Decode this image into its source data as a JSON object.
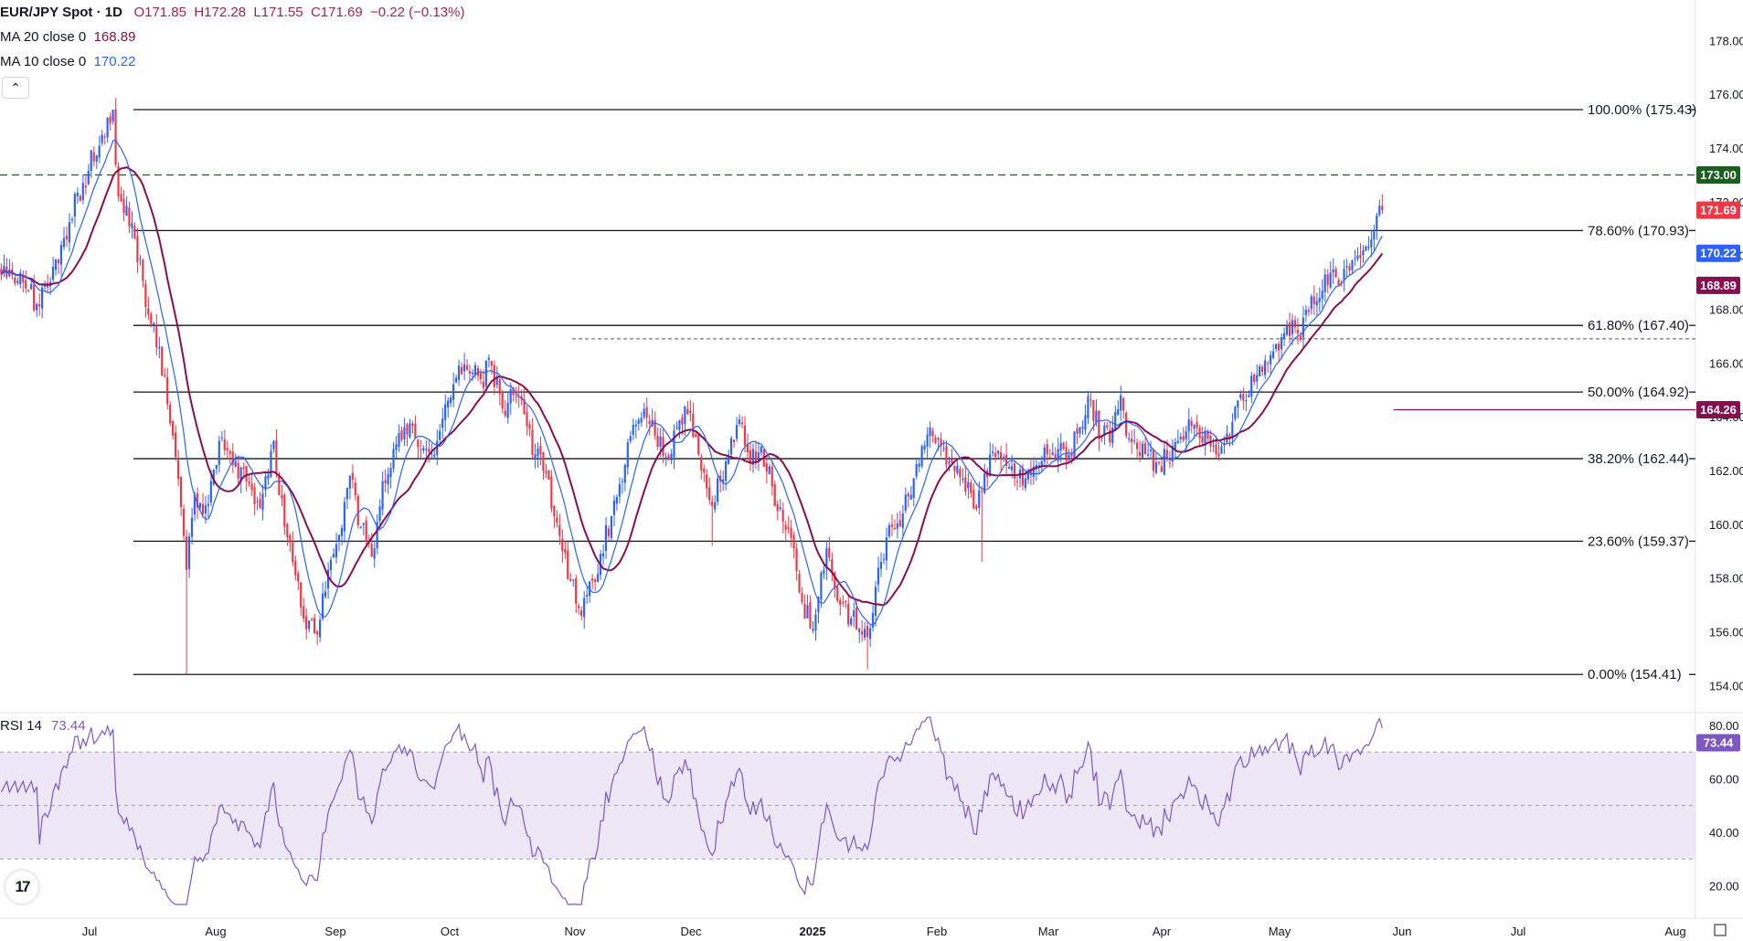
{
  "legend": {
    "symbol": "EUR/JPY Spot · 1D",
    "open": "O171.85",
    "high": "H172.28",
    "low": "L171.55",
    "close": "C171.69",
    "change": "−0.22 (−0.13%)",
    "ma20_label": "MA 20 close 0",
    "ma20_value": "168.89",
    "ma10_label": "MA 10 close 0",
    "ma10_value": "170.22",
    "rsi_label": "RSI 14",
    "rsi_value": "73.44"
  },
  "colors": {
    "up": "#2962ff",
    "down": "#f23645",
    "ma20": "#880e4f",
    "ma10": "#2962ff",
    "rsi": "#7e57c2",
    "rsi_band": "#ede7f6",
    "resistance": "#1b5e20",
    "last_price": "#f23645",
    "support_badge": "#880e4f"
  },
  "icons": {
    "collapse": "chevron-up-icon",
    "logo": "tradingview-logo-icon"
  },
  "chart_data": {
    "type": "candlestick",
    "title": "EUR/JPY Spot · 1D",
    "y_axis": {
      "ylim": [
        153.5,
        179
      ],
      "ticks": [
        154,
        156,
        158,
        160,
        162,
        164,
        166,
        168,
        170,
        172,
        174,
        176,
        178
      ],
      "side": "right"
    },
    "x_axis": {
      "labels": [
        "Jul",
        "Aug",
        "Sep",
        "Oct",
        "Nov",
        "Dec",
        "2025",
        "Feb",
        "Mar",
        "Apr",
        "May",
        "Jun",
        "Jul",
        "Aug"
      ]
    },
    "fibonacci": [
      {
        "label": "100.00% (175.43)",
        "value": 175.43
      },
      {
        "label": "78.60% (170.93)",
        "value": 170.93
      },
      {
        "label": "61.80% (167.40)",
        "value": 167.4
      },
      {
        "label": "50.00% (164.92)",
        "value": 164.92
      },
      {
        "label": "38.20% (162.44)",
        "value": 162.44
      },
      {
        "label": "23.60% (159.37)",
        "value": 159.37
      },
      {
        "label": "0.00% (154.41)",
        "value": 154.41
      }
    ],
    "horizontal_levels": [
      {
        "value": 173.0,
        "label": "173.00",
        "style": "dashed",
        "color": "#1b5e20"
      },
      {
        "value": 166.9,
        "style": "dotted",
        "color": "#555555"
      },
      {
        "value": 164.26,
        "label": "164.26",
        "style": "solid",
        "color": "#880e4f"
      }
    ],
    "price_badges": [
      {
        "value": 171.69,
        "label": "171.69",
        "color": "#f23645"
      },
      {
        "value": 170.22,
        "label": "170.22",
        "color": "#2962ff"
      },
      {
        "value": 168.89,
        "label": "168.89",
        "color": "#880e4f"
      }
    ],
    "anchors": [
      [
        0,
        169.3
      ],
      [
        8,
        169.0
      ],
      [
        14,
        168.1
      ],
      [
        22,
        170.4
      ],
      [
        30,
        172.7
      ],
      [
        37,
        174.5
      ],
      [
        40,
        174.9
      ],
      [
        41,
        175.43
      ],
      [
        43,
        172.2
      ],
      [
        48,
        171.2
      ],
      [
        54,
        167.8
      ],
      [
        60,
        165.5
      ],
      [
        64,
        162.5
      ],
      [
        68,
        158.3
      ],
      [
        71,
        161.1
      ],
      [
        75,
        160.7
      ],
      [
        80,
        163.1
      ],
      [
        85,
        162.2
      ],
      [
        90,
        161.6
      ],
      [
        95,
        160.6
      ],
      [
        100,
        163.1
      ],
      [
        104,
        159.9
      ],
      [
        108,
        158.1
      ],
      [
        112,
        156.1
      ],
      [
        116,
        155.9
      ],
      [
        120,
        158.3
      ],
      [
        124,
        159.6
      ],
      [
        128,
        161.8
      ],
      [
        132,
        159.9
      ],
      [
        136,
        158.8
      ],
      [
        140,
        161.6
      ],
      [
        144,
        162.8
      ],
      [
        148,
        163.6
      ],
      [
        152,
        163.2
      ],
      [
        156,
        162.8
      ],
      [
        160,
        163.1
      ],
      [
        164,
        164.6
      ],
      [
        168,
        165.9
      ],
      [
        172,
        165.6
      ],
      [
        176,
        165.4
      ],
      [
        180,
        165.9
      ],
      [
        184,
        164.3
      ],
      [
        188,
        164.8
      ],
      [
        192,
        164.1
      ],
      [
        196,
        162.6
      ],
      [
        200,
        161.9
      ],
      [
        203,
        160.3
      ],
      [
        206,
        159.0
      ],
      [
        209,
        157.9
      ],
      [
        213,
        156.6
      ],
      [
        217,
        157.9
      ],
      [
        220,
        158.9
      ],
      [
        224,
        160.3
      ],
      [
        228,
        161.6
      ],
      [
        232,
        163.7
      ],
      [
        236,
        164.3
      ],
      [
        240,
        163.3
      ],
      [
        244,
        162.5
      ],
      [
        248,
        163.6
      ],
      [
        252,
        164.1
      ],
      [
        256,
        162.6
      ],
      [
        260,
        160.9
      ],
      [
        264,
        161.6
      ],
      [
        268,
        163.2
      ],
      [
        271,
        163.9
      ],
      [
        275,
        162.3
      ],
      [
        279,
        162.9
      ],
      [
        283,
        161.4
      ],
      [
        287,
        160.1
      ],
      [
        291,
        159.1
      ],
      [
        294,
        157.1
      ],
      [
        298,
        156.1
      ],
      [
        300,
        157.3
      ],
      [
        303,
        159.1
      ],
      [
        306,
        157.6
      ],
      [
        309,
        157.1
      ],
      [
        312,
        156.5
      ],
      [
        315,
        156.1
      ],
      [
        318,
        155.8
      ],
      [
        320,
        156.7
      ],
      [
        323,
        158.6
      ],
      [
        327,
        159.9
      ],
      [
        331,
        160.4
      ],
      [
        335,
        161.7
      ],
      [
        338,
        162.9
      ],
      [
        341,
        163.6
      ],
      [
        345,
        162.9
      ],
      [
        349,
        162.3
      ],
      [
        353,
        161.7
      ],
      [
        357,
        160.6
      ],
      [
        360,
        161.2
      ],
      [
        364,
        162.7
      ],
      [
        368,
        162.5
      ],
      [
        372,
        161.7
      ],
      [
        376,
        161.7
      ],
      [
        380,
        162.2
      ],
      [
        384,
        162.6
      ],
      [
        388,
        162.8
      ],
      [
        392,
        162.6
      ],
      [
        396,
        163.6
      ],
      [
        400,
        164.6
      ],
      [
        404,
        163.2
      ],
      [
        408,
        163.6
      ],
      [
        411,
        164.8
      ],
      [
        414,
        163.2
      ],
      [
        417,
        162.8
      ],
      [
        420,
        162.6
      ],
      [
        424,
        162.3
      ],
      [
        428,
        162.4
      ],
      [
        432,
        163.1
      ],
      [
        436,
        163.9
      ],
      [
        440,
        163.2
      ],
      [
        444,
        162.9
      ],
      [
        448,
        162.9
      ],
      [
        452,
        163.8
      ],
      [
        456,
        164.6
      ],
      [
        460,
        165.3
      ],
      [
        464,
        166.1
      ],
      [
        468,
        166.7
      ],
      [
        472,
        167.4
      ],
      [
        476,
        167.1
      ],
      [
        480,
        167.9
      ],
      [
        483,
        168.3
      ],
      [
        486,
        169.3
      ],
      [
        490,
        169.2
      ],
      [
        494,
        169.6
      ],
      [
        497,
        169.9
      ],
      [
        500,
        170.2
      ],
      [
        503,
        170.6
      ],
      [
        505,
        171.5
      ],
      [
        506,
        171.85
      ],
      [
        507,
        171.69
      ]
    ],
    "rsi": {
      "period": 14,
      "last": 73.44,
      "ylim": [
        13,
        83
      ],
      "ticks": [
        20,
        40,
        60,
        80
      ],
      "levels": [
        70,
        50,
        30
      ]
    }
  }
}
